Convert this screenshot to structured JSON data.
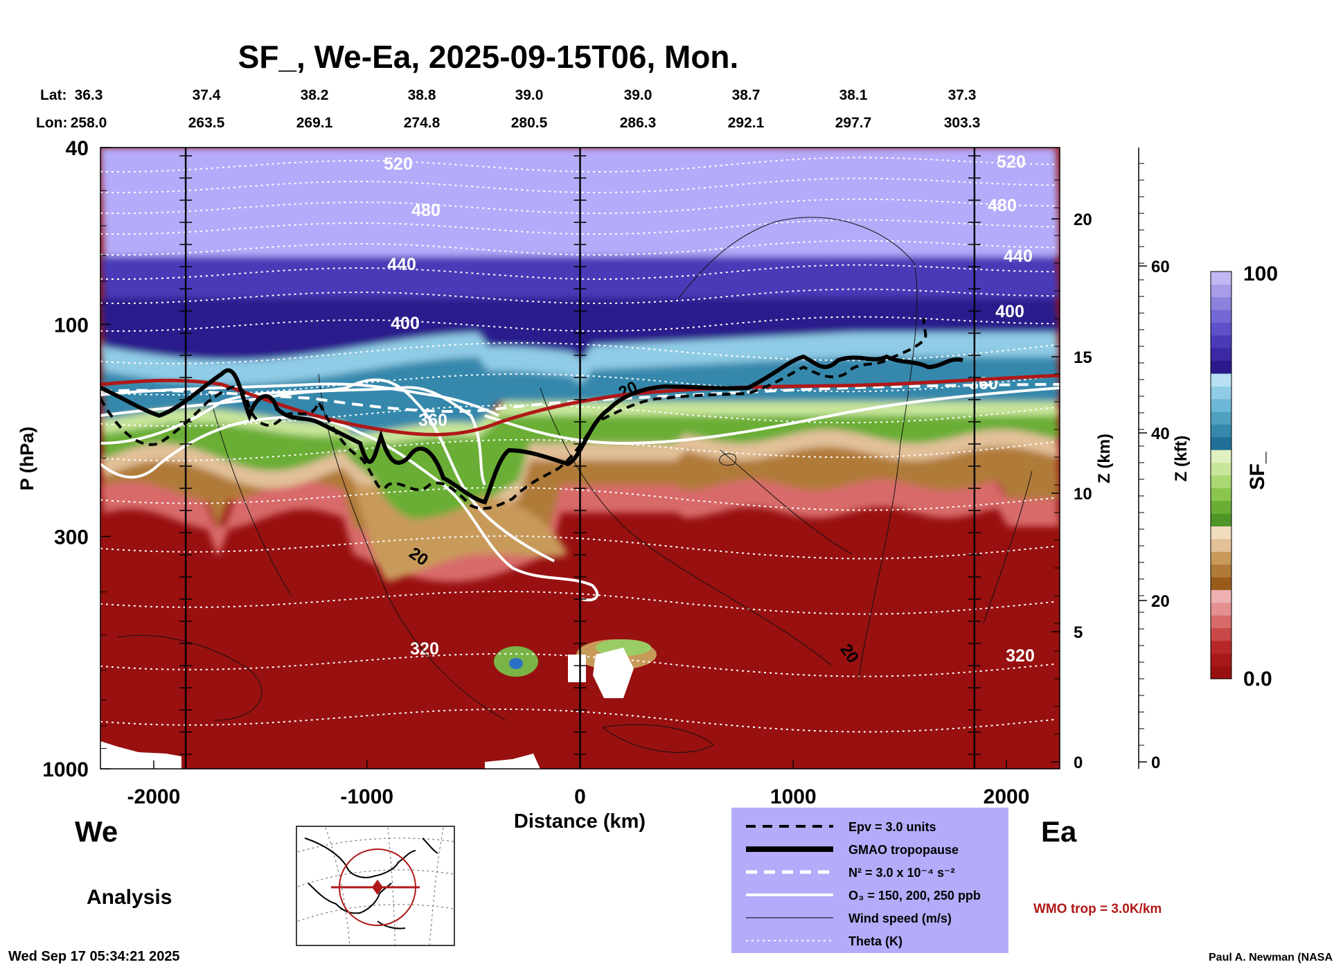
{
  "title": "SF_, We-Ea, 2025-09-15T06, Mon.",
  "latlon": {
    "lat_label": "Lat:",
    "lon_label": "Lon:",
    "points": [
      {
        "lat": "36.3",
        "lon": "258.0"
      },
      {
        "lat": "37.4",
        "lon": "263.5"
      },
      {
        "lat": "38.2",
        "lon": "269.1"
      },
      {
        "lat": "38.8",
        "lon": "274.8"
      },
      {
        "lat": "39.0",
        "lon": "280.5"
      },
      {
        "lat": "39.0",
        "lon": "286.3"
      },
      {
        "lat": "38.7",
        "lon": "292.1"
      },
      {
        "lat": "38.1",
        "lon": "297.7"
      },
      {
        "lat": "37.3",
        "lon": "303.3"
      }
    ]
  },
  "chart_data": {
    "type": "heatmap",
    "title": "SF_, We-Ea, 2025-09-15T06, Mon.",
    "xlabel": "Distance (km)",
    "ylabel": "P (hPa)",
    "xlim": [
      -2250,
      2250
    ],
    "ylim": [
      1000,
      40
    ],
    "yscale": "log",
    "x_ticks": [
      "-2000",
      "-1000",
      "0",
      "1000",
      "2000"
    ],
    "y_ticks": [
      "40",
      "100",
      "300",
      "1000"
    ],
    "z_km_label": "Z (km)",
    "z_km_ticks": [
      "0",
      "5",
      "10",
      "15",
      "20"
    ],
    "z_kft_label": "Z (kft)",
    "z_kft_ticks": [
      "0",
      "20",
      "40",
      "60"
    ],
    "colorbar": {
      "label": "SF_",
      "max_label": "100",
      "min_label": "0.0",
      "colors": [
        "#981010",
        "#a81818",
        "#b82828",
        "#c84848",
        "#d86a6a",
        "#e49090",
        "#eeb0b0",
        "#9a5a18",
        "#b07a38",
        "#c89a5a",
        "#e2c098",
        "#f2dcc0",
        "#4f9628",
        "#6aae36",
        "#8ac64e",
        "#aad872",
        "#c8e69a",
        "#e0f0c0",
        "#1f6f98",
        "#3588ac",
        "#50a0c0",
        "#6cb8d6",
        "#90cce6",
        "#b8e0f4",
        "#2a1a8c",
        "#3a28a4",
        "#4a3ab8",
        "#5e50c8",
        "#7468d4",
        "#8c82de",
        "#a69ce8",
        "#c0b8f2"
      ]
    },
    "contour_labels": {
      "theta": [
        "520",
        "480",
        "440",
        "400",
        "360",
        "320",
        "520",
        "480",
        "440",
        "400",
        "360",
        "320"
      ],
      "wind": [
        "20",
        "20",
        "20"
      ]
    },
    "vertical_lines_km": [
      -1850,
      0,
      1850
    ],
    "side_labels": {
      "west": "We",
      "east": "Ea"
    },
    "analysis_label": "Analysis",
    "legend": [
      {
        "label": "Epv = 3.0 units",
        "style": "black-dashed"
      },
      {
        "label": "GMAO tropopause",
        "style": "black-thick"
      },
      {
        "label": "N² = 3.0 x 10⁻⁴ s⁻²",
        "style": "white-dashed"
      },
      {
        "label": "O₃ = 150, 200, 250 ppb",
        "style": "white-solid"
      },
      {
        "label": "Wind speed (m/s)",
        "style": "black-thin"
      },
      {
        "label": "Theta (K)",
        "style": "white-dotted"
      }
    ],
    "legend_bg": "#b4acfa",
    "wmo_label": "WMO trop = 3.0K/km",
    "wmo_color": "#b01818"
  },
  "footer": {
    "timestamp": "Wed Sep 17 05:34:21 2025",
    "credit": "Paul A. Newman (NASA"
  }
}
